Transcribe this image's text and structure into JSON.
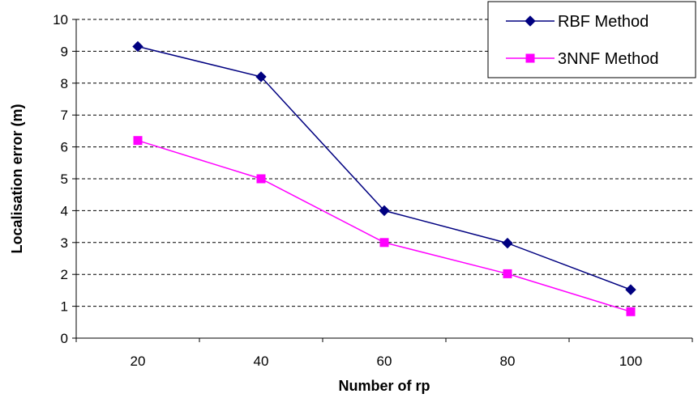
{
  "chart_data": {
    "type": "line",
    "xlabel": "Number of rp",
    "ylabel": "Localisation error (m)",
    "categories": [
      "20",
      "40",
      "60",
      "80",
      "100"
    ],
    "ylim": [
      0,
      10
    ],
    "yticks": [
      "0",
      "1",
      "2",
      "3",
      "4",
      "5",
      "6",
      "7",
      "8",
      "9",
      "10"
    ],
    "grid": "horizontal dashed",
    "legend_position": "top-right",
    "series": [
      {
        "name": "RBF Method",
        "marker": "diamond",
        "color": "#000080",
        "values": [
          9.15,
          8.2,
          4.0,
          2.98,
          1.52
        ]
      },
      {
        "name": "3NNF Method",
        "marker": "square",
        "color": "#FF00FF",
        "values": [
          6.2,
          5.0,
          3.0,
          2.02,
          0.83
        ]
      }
    ]
  }
}
